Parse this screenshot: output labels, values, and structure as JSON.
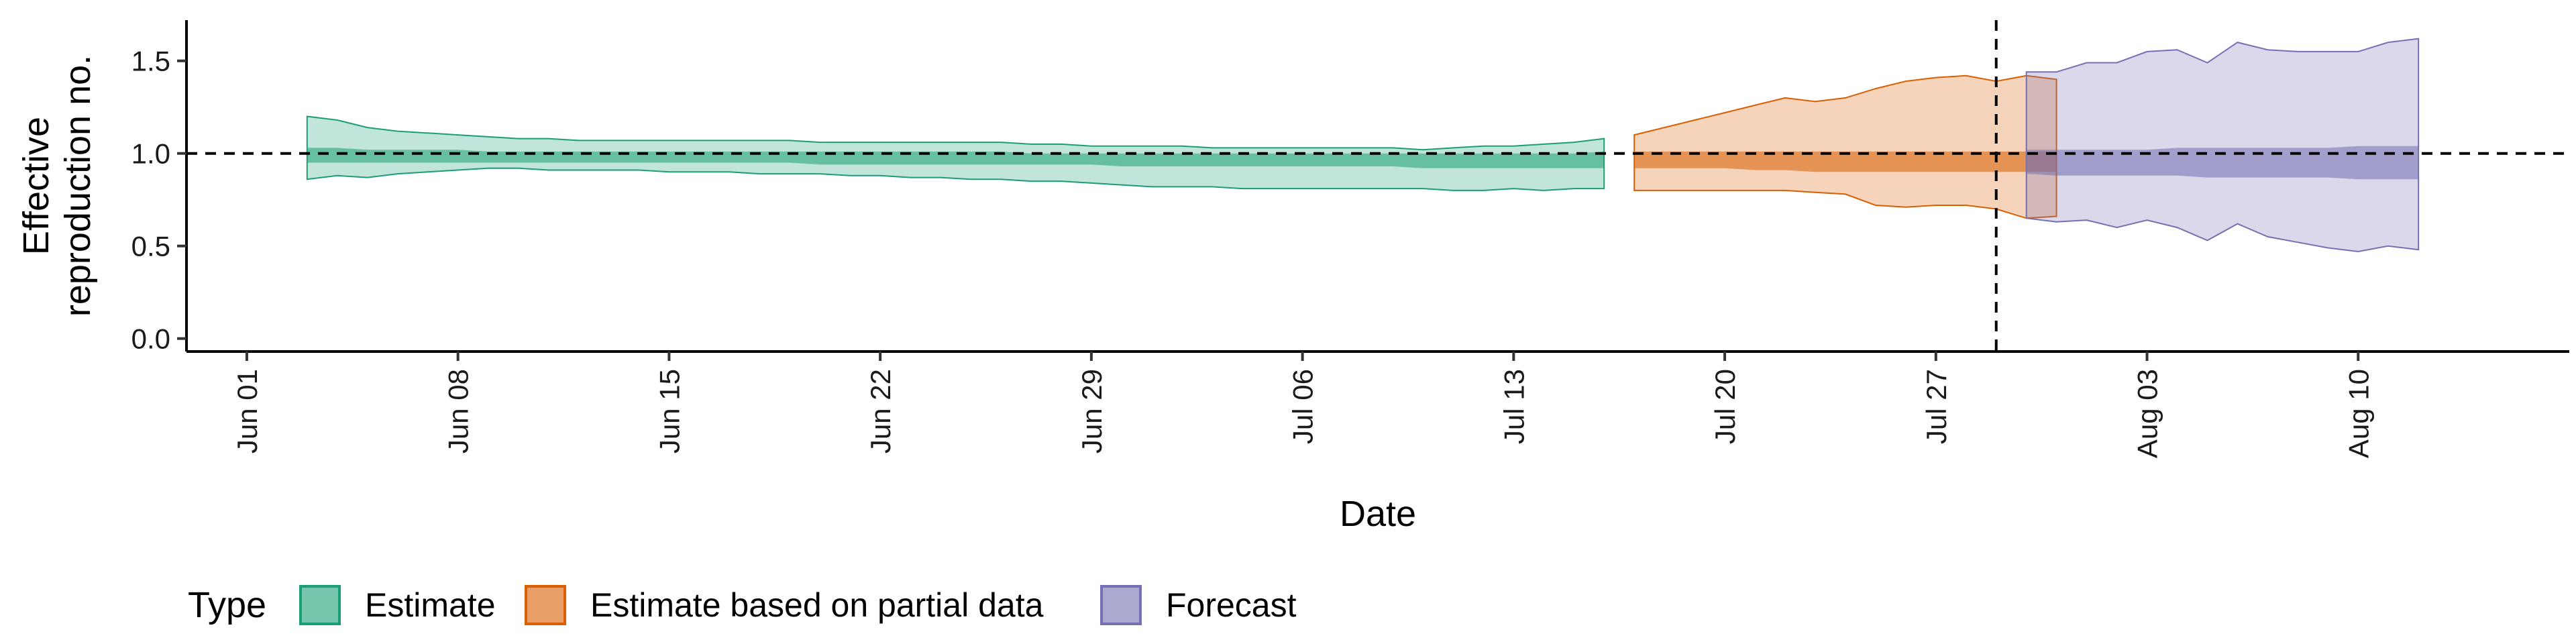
{
  "chart_data": {
    "type": "area",
    "title": "",
    "xlabel": "Date",
    "ylabel_lines": [
      "Effective",
      "reproduction no."
    ],
    "x_range": [
      "2020-05-30",
      "2020-08-17"
    ],
    "ylim": [
      -0.07,
      1.72
    ],
    "y_ticks": [
      0.0,
      0.5,
      1.0,
      1.5
    ],
    "y_tick_labels": [
      "0.0",
      "0.5",
      "1.0",
      "1.5"
    ],
    "x_ticks": [
      "2020-06-01",
      "2020-06-08",
      "2020-06-15",
      "2020-06-22",
      "2020-06-29",
      "2020-07-06",
      "2020-07-13",
      "2020-07-20",
      "2020-07-27",
      "2020-08-03",
      "2020-08-10"
    ],
    "x_tick_labels": [
      "Jun 01",
      "Jun 08",
      "Jun 15",
      "Jun 22",
      "Jun 29",
      "Jul 06",
      "Jul 13",
      "Jul 20",
      "Jul 27",
      "Aug 03",
      "Aug 10"
    ],
    "reference_line_y": 1.0,
    "reference_line_x": "2020-07-29",
    "grid": false,
    "legend": {
      "title": "Type",
      "position": "bottom",
      "entries": [
        "Estimate",
        "Estimate based on partial data",
        "Forecast"
      ]
    },
    "series": [
      {
        "name": "Estimate",
        "color": "#1b9e77",
        "outer_alpha": 0.27,
        "inner_alpha": 0.55,
        "start": "2020-06-03",
        "lower_outer": [
          0.86,
          0.88,
          0.87,
          0.89,
          0.9,
          0.91,
          0.92,
          0.92,
          0.91,
          0.91,
          0.91,
          0.91,
          0.9,
          0.9,
          0.9,
          0.89,
          0.89,
          0.89,
          0.88,
          0.88,
          0.87,
          0.87,
          0.86,
          0.86,
          0.85,
          0.85,
          0.84,
          0.83,
          0.82,
          0.82,
          0.82,
          0.81,
          0.81,
          0.81,
          0.81,
          0.81,
          0.81,
          0.81,
          0.8,
          0.8,
          0.81,
          0.8,
          0.81,
          0.81
        ],
        "upper_outer": [
          1.2,
          1.18,
          1.14,
          1.12,
          1.11,
          1.1,
          1.09,
          1.08,
          1.08,
          1.07,
          1.07,
          1.07,
          1.07,
          1.07,
          1.07,
          1.07,
          1.07,
          1.06,
          1.06,
          1.06,
          1.06,
          1.06,
          1.06,
          1.06,
          1.05,
          1.05,
          1.04,
          1.04,
          1.04,
          1.04,
          1.03,
          1.03,
          1.03,
          1.03,
          1.03,
          1.03,
          1.03,
          1.02,
          1.03,
          1.04,
          1.04,
          1.05,
          1.06,
          1.08
        ],
        "lower_inner": [
          0.95,
          0.95,
          0.95,
          0.95,
          0.95,
          0.95,
          0.95,
          0.95,
          0.95,
          0.95,
          0.95,
          0.95,
          0.95,
          0.95,
          0.95,
          0.95,
          0.95,
          0.94,
          0.94,
          0.94,
          0.94,
          0.94,
          0.94,
          0.94,
          0.94,
          0.94,
          0.94,
          0.93,
          0.93,
          0.93,
          0.93,
          0.93,
          0.93,
          0.93,
          0.93,
          0.93,
          0.93,
          0.92,
          0.92,
          0.92,
          0.92,
          0.92,
          0.92,
          0.92
        ],
        "upper_inner": [
          1.03,
          1.03,
          1.02,
          1.02,
          1.02,
          1.02,
          1.01,
          1.01,
          1.01,
          1.01,
          1.01,
          1.01,
          1.01,
          1.01,
          1.01,
          1.01,
          1.01,
          1.01,
          1.01,
          1.01,
          1.01,
          1.01,
          1.01,
          1.01,
          1.0,
          1.0,
          1.0,
          1.0,
          1.0,
          1.0,
          1.0,
          1.0,
          1.0,
          1.0,
          1.0,
          1.0,
          1.0,
          1.0,
          1.0,
          1.0,
          1.0,
          1.0,
          1.0,
          1.01
        ]
      },
      {
        "name": "Estimate based on partial data",
        "color": "#d95f02",
        "outer_alpha": 0.27,
        "inner_alpha": 0.55,
        "start": "2020-07-17",
        "lower_outer": [
          0.8,
          0.8,
          0.8,
          0.8,
          0.8,
          0.8,
          0.79,
          0.78,
          0.72,
          0.71,
          0.72,
          0.72,
          0.7,
          0.65,
          0.66
        ],
        "upper_outer": [
          1.1,
          1.14,
          1.18,
          1.22,
          1.26,
          1.3,
          1.28,
          1.3,
          1.35,
          1.39,
          1.41,
          1.42,
          1.39,
          1.42,
          1.4
        ],
        "lower_inner": [
          0.92,
          0.92,
          0.92,
          0.92,
          0.91,
          0.91,
          0.9,
          0.9,
          0.9,
          0.9,
          0.9,
          0.9,
          0.9,
          0.9,
          0.9
        ],
        "upper_inner": [
          1.01,
          1.01,
          1.01,
          1.01,
          1.01,
          1.01,
          1.01,
          1.01,
          1.01,
          1.01,
          1.01,
          1.01,
          1.01,
          1.01,
          1.01
        ]
      },
      {
        "name": "Forecast",
        "color": "#7570b3",
        "outer_alpha": 0.27,
        "inner_alpha": 0.55,
        "start": "2020-07-30",
        "lower_outer": [
          0.65,
          0.63,
          0.64,
          0.6,
          0.64,
          0.6,
          0.53,
          0.62,
          0.55,
          0.52,
          0.49,
          0.47,
          0.5,
          0.48
        ],
        "upper_outer": [
          1.44,
          1.44,
          1.49,
          1.49,
          1.55,
          1.56,
          1.49,
          1.6,
          1.56,
          1.55,
          1.55,
          1.55,
          1.6,
          1.62
        ],
        "lower_inner": [
          0.89,
          0.88,
          0.88,
          0.88,
          0.88,
          0.88,
          0.87,
          0.87,
          0.87,
          0.87,
          0.87,
          0.86,
          0.86,
          0.86
        ],
        "upper_inner": [
          1.02,
          1.02,
          1.02,
          1.02,
          1.02,
          1.03,
          1.03,
          1.03,
          1.03,
          1.03,
          1.03,
          1.04,
          1.04,
          1.04
        ]
      }
    ]
  }
}
